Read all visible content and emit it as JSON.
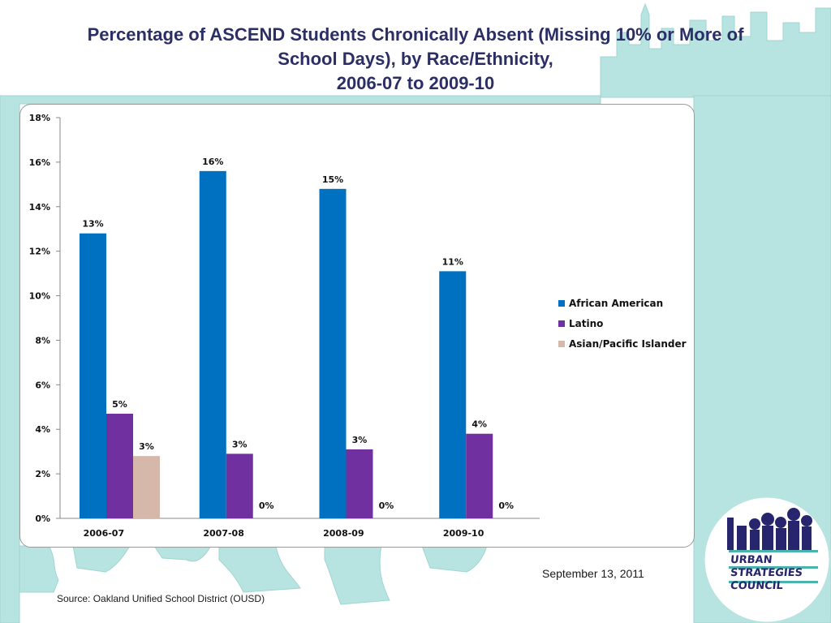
{
  "slide": {
    "title_lines": [
      "Percentage of ASCEND Students Chronically Absent (Missing 10% or More of",
      "School Days), by Race/Ethnicity,",
      "2006-07 to 2009-10"
    ],
    "date": "September 13, 2011",
    "source": "Source: Oakland Unified School District (OUSD)"
  },
  "logo": {
    "lines": [
      "URBAN",
      "STRATEGIES",
      "COUNCIL"
    ]
  },
  "colors": {
    "african_american": "#0070c0",
    "latino": "#7030a0",
    "asian_pacific_islander": "#d6b8ab",
    "background_accent": "#b7e3e0",
    "title": "#2b2f66"
  },
  "chart_data": {
    "type": "bar",
    "title": "",
    "xlabel": "",
    "ylabel": "",
    "categories": [
      "2006-07",
      "2007-08",
      "2008-09",
      "2009-10"
    ],
    "series": [
      {
        "name": "African American",
        "values": [
          12.8,
          15.6,
          14.8,
          11.1
        ],
        "labels": [
          "13%",
          "16%",
          "15%",
          "11%"
        ]
      },
      {
        "name": "Latino",
        "values": [
          4.7,
          2.9,
          3.1,
          3.8
        ],
        "labels": [
          "5%",
          "3%",
          "3%",
          "4%"
        ]
      },
      {
        "name": "Asian/Pacific Islander",
        "values": [
          2.8,
          0,
          0,
          0
        ],
        "labels": [
          "3%",
          "0%",
          "0%",
          "0%"
        ]
      }
    ],
    "ylim": [
      0,
      18
    ],
    "yticks": [
      0,
      2,
      4,
      6,
      8,
      10,
      12,
      14,
      16,
      18
    ],
    "ytick_labels": [
      "0%",
      "2%",
      "4%",
      "6%",
      "8%",
      "10%",
      "12%",
      "14%",
      "16%",
      "18%"
    ],
    "grid": false,
    "legend_position": "right"
  }
}
